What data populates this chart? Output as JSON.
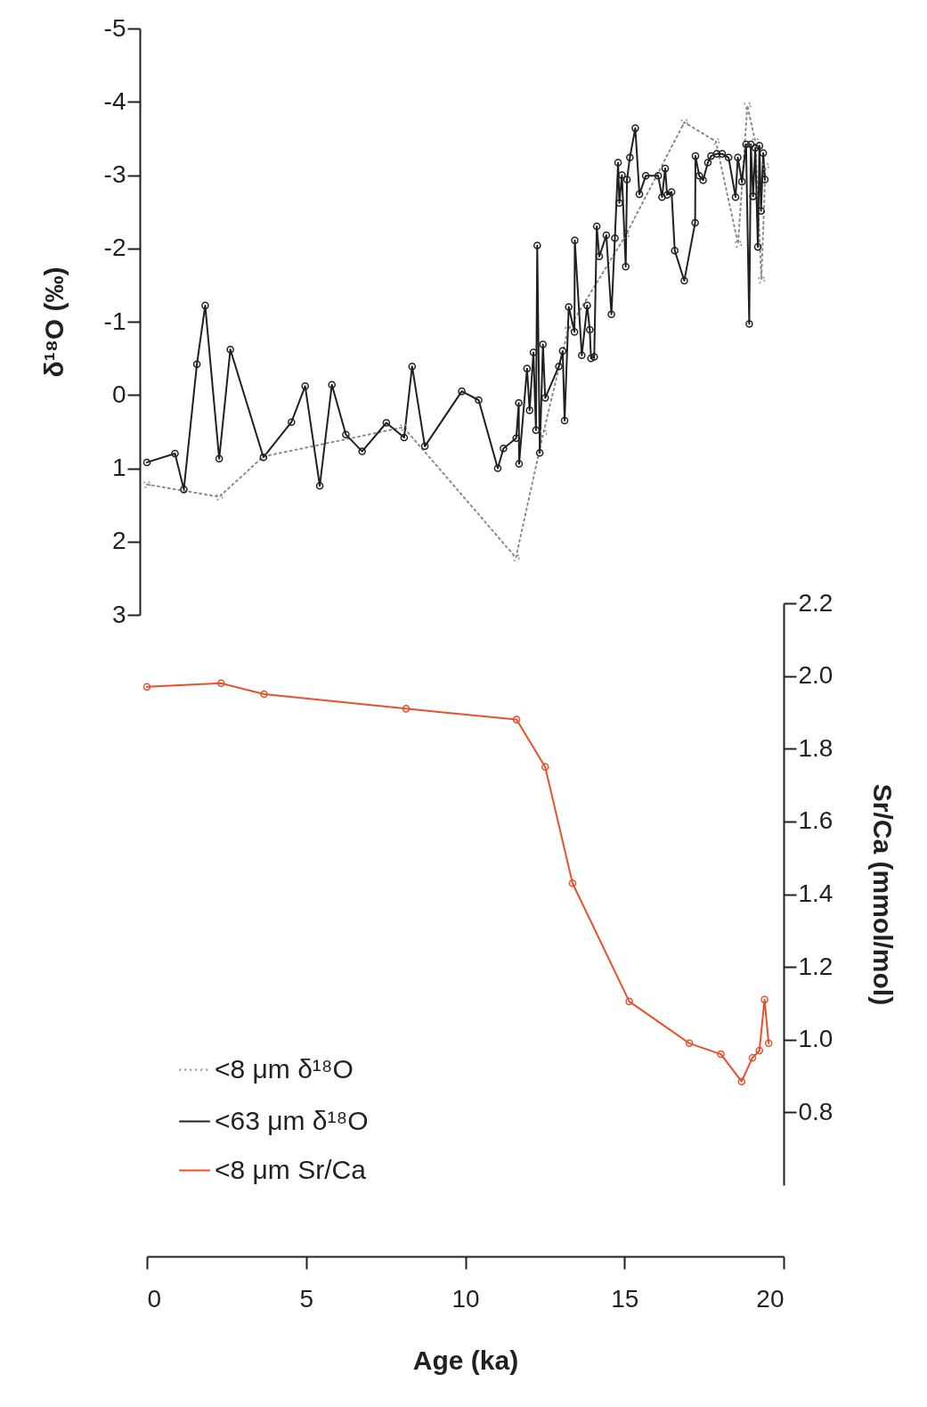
{
  "chart_data": [
    {
      "type": "line",
      "ylabel": "δ¹⁸O (‰)",
      "xlim": [
        0,
        20
      ],
      "ylim": [
        3,
        -5
      ],
      "yticks": [
        -5,
        -4,
        -3,
        -2,
        -1,
        0,
        1,
        2,
        3
      ],
      "tick_labels": "y",
      "marker": "circle",
      "legend": "bottom left",
      "grid": false,
      "series": [
        {
          "name": "<8 μm δ¹⁸O",
          "color": "#8a8a8a",
          "line_style": "dotted",
          "x": [
            0,
            2.27,
            3.66,
            8.06,
            11.59,
            12.45,
            13.23,
            15.04,
            16.88,
            17.87,
            18.57,
            18.86,
            19.11,
            19.3,
            19.43
          ],
          "values": [
            1.22,
            1.39,
            0.84,
            0.44,
            2.22,
            0.52,
            -0.89,
            -2.18,
            -3.72,
            -3.46,
            -2.06,
            -3.95,
            -3.46,
            -1.57,
            -3.12
          ]
        },
        {
          "name": "<63 μm δ¹⁸O",
          "color": "#231f20",
          "line_style": "solid",
          "x": [
            0,
            0.88,
            1.16,
            1.57,
            1.83,
            2.27,
            2.62,
            3.66,
            4.54,
            4.97,
            5.43,
            5.81,
            6.25,
            6.76,
            7.52,
            8.08,
            8.33,
            8.73,
            9.89,
            10.42,
            11.02,
            11.2,
            11.6,
            11.68,
            11.69,
            11.94,
            12.02,
            12.14,
            12.22,
            12.26,
            12.34,
            12.44,
            12.51,
            12.94,
            13.06,
            13.12,
            13.25,
            13.43,
            13.44,
            13.66,
            13.83,
            13.91,
            13.95,
            14.05,
            14.13,
            14.21,
            14.43,
            14.59,
            14.7,
            14.8,
            14.84,
            14.92,
            15.04,
            15.08,
            15.17,
            15.34,
            15.47,
            15.67,
            16.06,
            16.18,
            16.28,
            16.34,
            16.48,
            16.58,
            16.88,
            17.22,
            17.23,
            17.35,
            17.47,
            17.62,
            17.72,
            17.9,
            18.07,
            18.27,
            18.49,
            18.56,
            18.69,
            18.82,
            18.92,
            18.97,
            19.04,
            19.11,
            19.19,
            19.24,
            19.29,
            19.36,
            19.41
          ],
          "values": [
            0.92,
            0.8,
            1.29,
            -0.42,
            -1.22,
            0.87,
            -0.62,
            0.85,
            0.37,
            -0.12,
            1.24,
            -0.14,
            0.54,
            0.77,
            0.38,
            0.58,
            -0.39,
            0.7,
            -0.05,
            0.07,
            1.0,
            0.73,
            0.59,
            0.11,
            0.94,
            -0.36,
            0.21,
            -0.58,
            0.48,
            -2.04,
            0.79,
            -0.69,
            0.04,
            -0.39,
            -0.6,
            0.35,
            -1.2,
            -0.86,
            -2.11,
            -0.54,
            -1.22,
            -0.89,
            -0.5,
            -0.52,
            -2.3,
            -1.89,
            -2.18,
            -1.1,
            -2.14,
            -3.17,
            -2.62,
            -3.0,
            -1.75,
            -2.94,
            -3.24,
            -3.64,
            -2.74,
            -2.99,
            -2.99,
            -2.7,
            -3.09,
            -2.73,
            -2.77,
            -1.97,
            -1.56,
            -2.35,
            -3.26,
            -2.99,
            -2.93,
            -3.17,
            -3.26,
            -3.29,
            -3.29,
            -3.24,
            -2.7,
            -3.24,
            -2.91,
            -3.42,
            -0.97,
            -3.42,
            -2.71,
            -3.37,
            -2.02,
            -3.4,
            -2.51,
            -3.3,
            -2.94
          ]
        }
      ]
    },
    {
      "type": "line",
      "xlabel": "Age (ka)",
      "ylabel": "Sr/Ca (mmol/mol)",
      "xlim": [
        0,
        20
      ],
      "xticks": [
        0,
        5,
        10,
        15,
        20
      ],
      "ylim": [
        0.6,
        2.2
      ],
      "yticks": [
        {
          "value": 0.8,
          "label": "0.8"
        },
        {
          "value": 1,
          "label": "1.0"
        },
        {
          "value": 1.2,
          "label": "1.2"
        },
        {
          "value": 1.4,
          "label": "1.4"
        },
        {
          "value": 1.6,
          "label": "1.6"
        },
        {
          "value": 1.8,
          "label": "1.8"
        },
        {
          "value": 2,
          "label": "2.0"
        },
        {
          "value": 2.2,
          "label": "2.2"
        }
      ],
      "marker": "circle",
      "legend": "bottom left",
      "grid": false,
      "series": [
        {
          "name": "<8 μm Sr/Ca",
          "color": "#e8502a",
          "line_style": "solid",
          "x": [
            0,
            2.33,
            3.68,
            8.14,
            11.61,
            12.51,
            13.37,
            15.15,
            17.04,
            18.03,
            18.68,
            19.02,
            19.24,
            19.4,
            19.53
          ],
          "values": [
            1.97,
            1.98,
            1.95,
            1.91,
            1.88,
            1.75,
            1.43,
            1.105,
            0.99,
            0.96,
            0.885,
            0.95,
            0.97,
            1.11,
            0.99
          ]
        }
      ]
    }
  ]
}
